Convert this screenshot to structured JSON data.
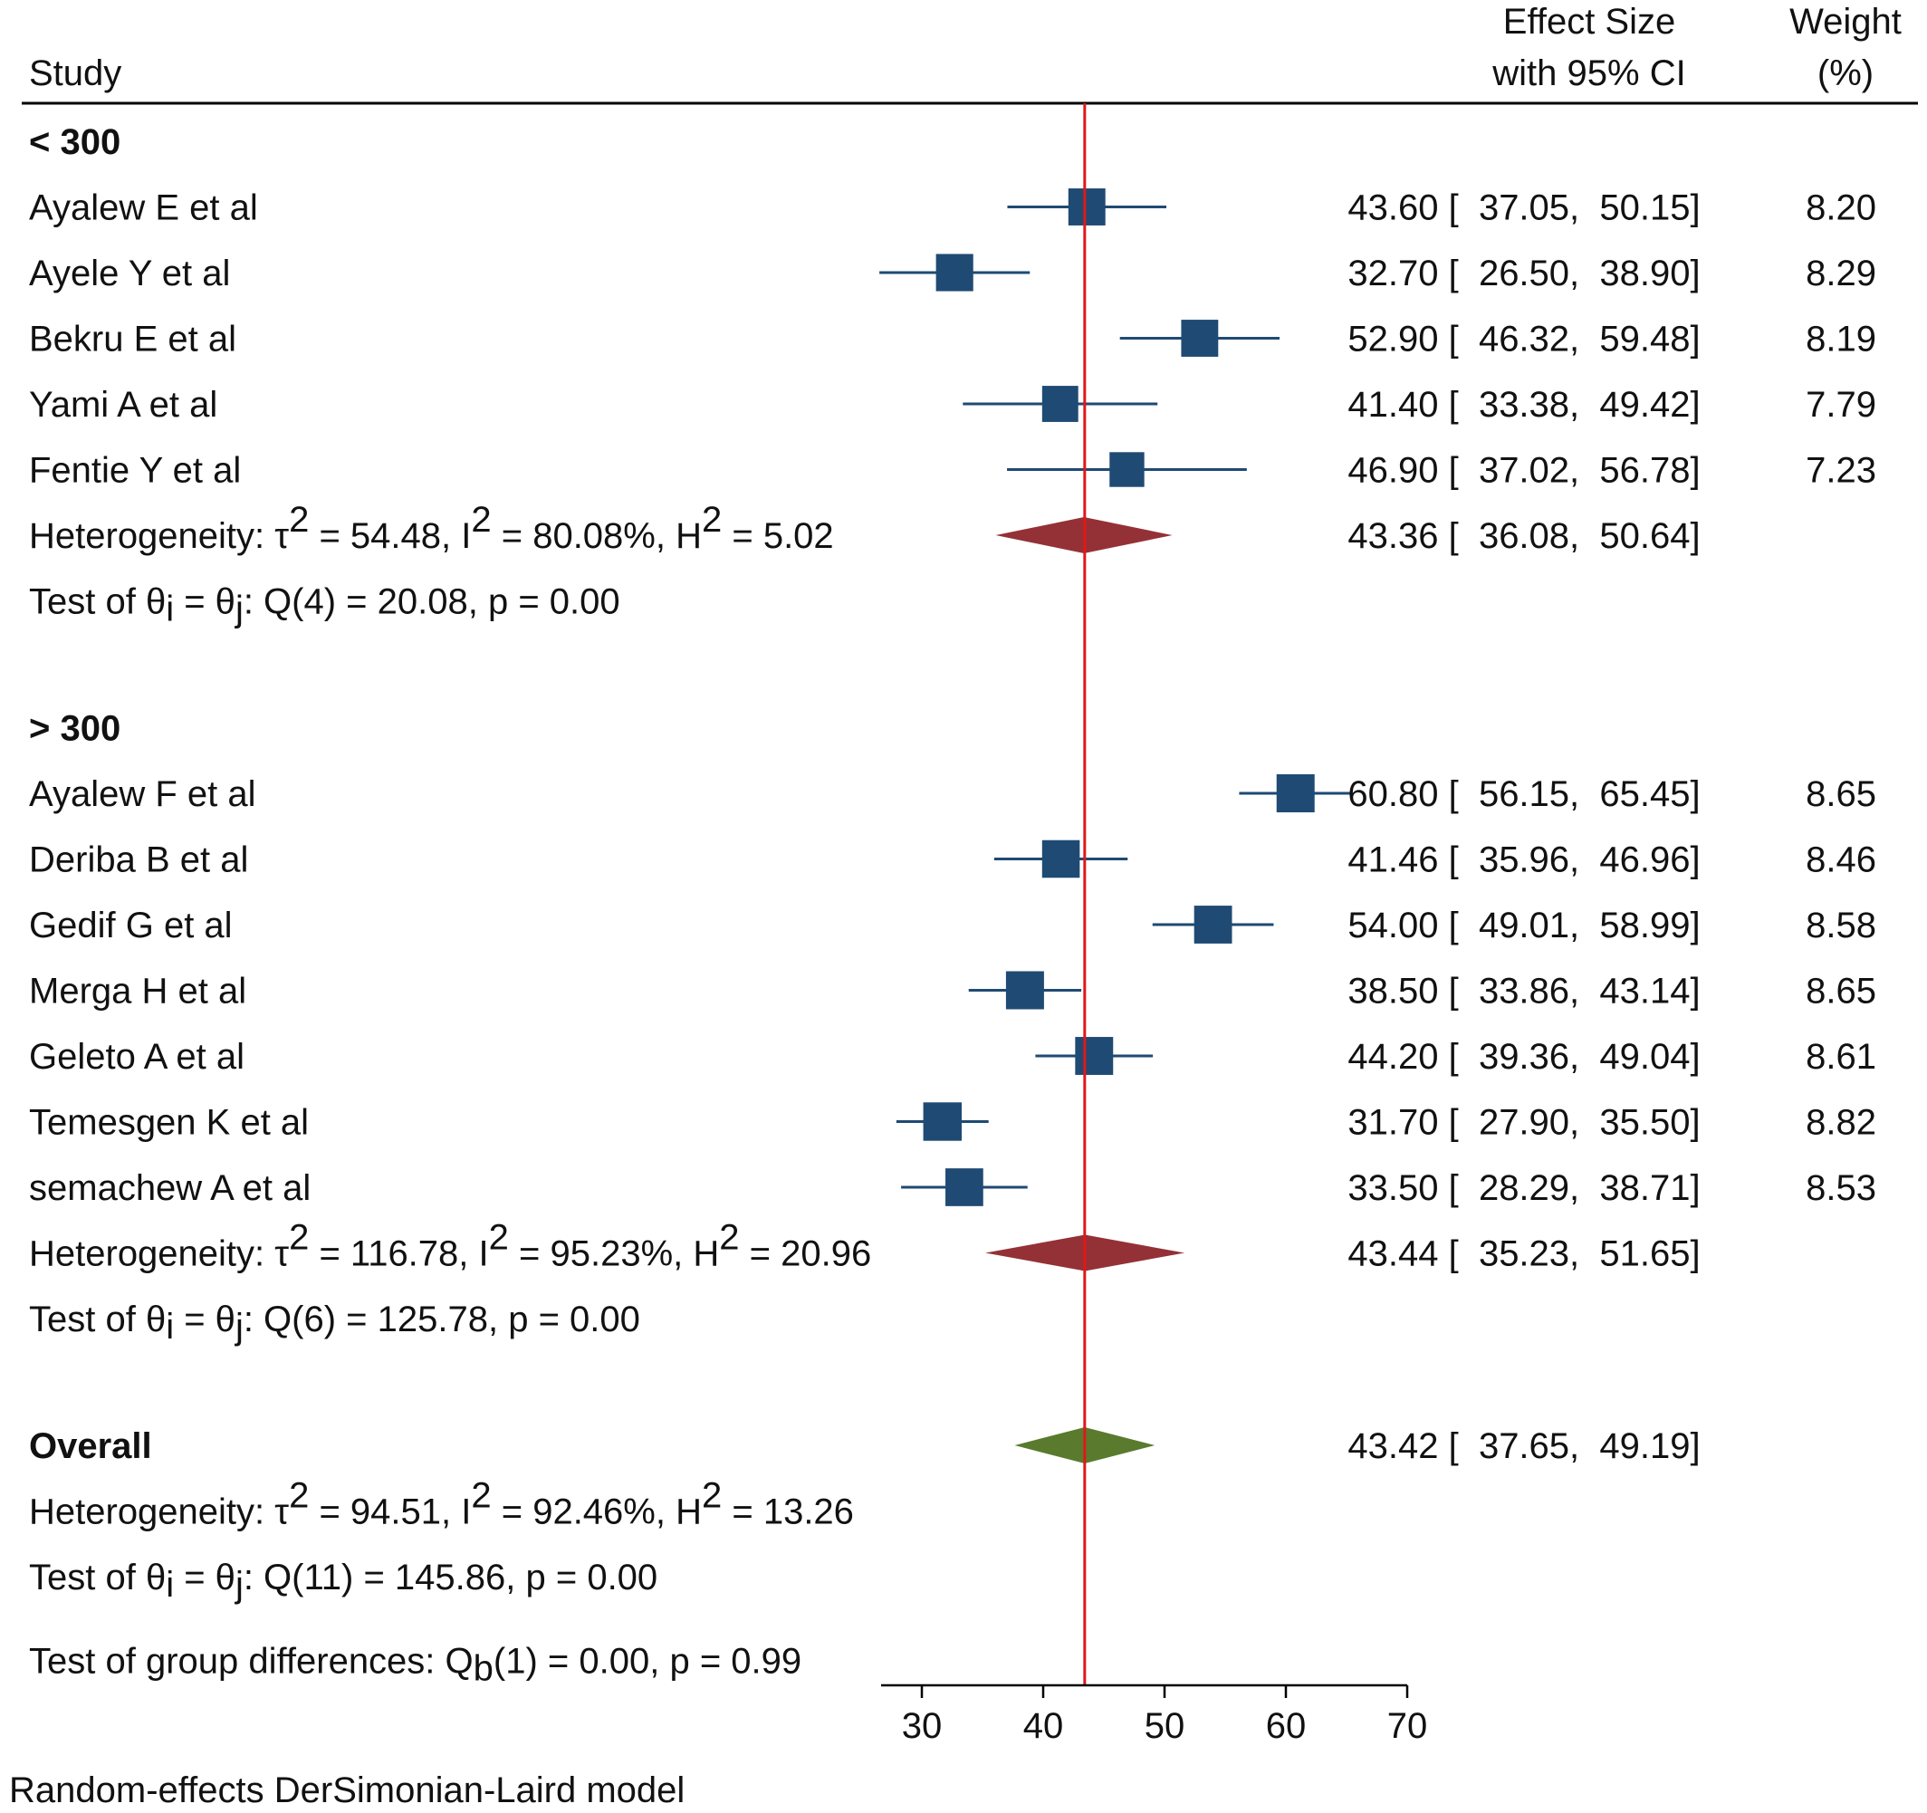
{
  "header": {
    "study": "Study",
    "effect_line1": "Effect Size",
    "effect_line2": "with 95% CI",
    "weight_line1": "Weight",
    "weight_line2": "(%)"
  },
  "colors": {
    "study_square": "#1f4a73",
    "subgroup_diamond": "#943136",
    "overall_diamond": "#5a7a2e",
    "reference_line": "#e01818",
    "ci_line": "#1f4a73"
  },
  "chart_data": {
    "type": "forest",
    "model_note": "Random-effects DerSimonian-Laird model",
    "xlim": [
      30,
      70
    ],
    "xticks": [
      30,
      40,
      50,
      60,
      70
    ],
    "reference_line": 43.42,
    "groups": [
      {
        "label": "< 300",
        "studies": [
          {
            "name": "Ayalew E et al",
            "es": 43.6,
            "lo": 37.05,
            "hi": 50.15,
            "weight": 8.2,
            "ci_text": "43.60 [  37.05,  50.15]",
            "weight_text": "8.20"
          },
          {
            "name": "Ayele Y et al",
            "es": 32.7,
            "lo": 26.5,
            "hi": 38.9,
            "weight": 8.29,
            "ci_text": "32.70 [  26.50,  38.90]",
            "weight_text": "8.29"
          },
          {
            "name": "Bekru E et al",
            "es": 52.9,
            "lo": 46.32,
            "hi": 59.48,
            "weight": 8.19,
            "ci_text": "52.90 [  46.32,  59.48]",
            "weight_text": "8.19"
          },
          {
            "name": "Yami A et al",
            "es": 41.4,
            "lo": 33.38,
            "hi": 49.42,
            "weight": 7.79,
            "ci_text": "41.40 [  33.38,  49.42]",
            "weight_text": "7.79"
          },
          {
            "name": "Fentie Y et al",
            "es": 46.9,
            "lo": 37.02,
            "hi": 56.78,
            "weight": 7.23,
            "ci_text": "46.90 [  37.02,  56.78]",
            "weight_text": "7.23"
          }
        ],
        "summary": {
          "es": 43.36,
          "lo": 36.08,
          "hi": 50.64,
          "ci_text": "43.36 [  36.08,  50.64]"
        },
        "heterogeneity": {
          "prefix": "Heterogeneity: τ",
          "tau": " = 54.48, I",
          "i2": " = 80.08%, H",
          "h2": " = 5.02"
        },
        "test": {
          "prefix": "Test of θ",
          "mid": " = θ",
          "rest": ": Q(4) = 20.08, p = 0.00"
        }
      },
      {
        "label": "> 300",
        "studies": [
          {
            "name": "Ayalew F et al",
            "es": 60.8,
            "lo": 56.15,
            "hi": 65.45,
            "weight": 8.65,
            "ci_text": "60.80 [  56.15,  65.45]",
            "weight_text": "8.65"
          },
          {
            "name": "Deriba B et al",
            "es": 41.46,
            "lo": 35.96,
            "hi": 46.96,
            "weight": 8.46,
            "ci_text": "41.46 [  35.96,  46.96]",
            "weight_text": "8.46"
          },
          {
            "name": "Gedif G et al",
            "es": 54.0,
            "lo": 49.01,
            "hi": 58.99,
            "weight": 8.58,
            "ci_text": "54.00 [  49.01,  58.99]",
            "weight_text": "8.58"
          },
          {
            "name": "Merga H et al",
            "es": 38.5,
            "lo": 33.86,
            "hi": 43.14,
            "weight": 8.65,
            "ci_text": "38.50 [  33.86,  43.14]",
            "weight_text": "8.65"
          },
          {
            "name": "Geleto A et al",
            "es": 44.2,
            "lo": 39.36,
            "hi": 49.04,
            "weight": 8.61,
            "ci_text": "44.20 [  39.36,  49.04]",
            "weight_text": "8.61"
          },
          {
            "name": "Temesgen K et al",
            "es": 31.7,
            "lo": 27.9,
            "hi": 35.5,
            "weight": 8.82,
            "ci_text": "31.70 [  27.90,  35.50]",
            "weight_text": "8.82"
          },
          {
            "name": "semachew A et al",
            "es": 33.5,
            "lo": 28.29,
            "hi": 38.71,
            "weight": 8.53,
            "ci_text": "33.50 [  28.29,  38.71]",
            "weight_text": "8.53"
          }
        ],
        "summary": {
          "es": 43.44,
          "lo": 35.23,
          "hi": 51.65,
          "ci_text": "43.44 [  35.23,  51.65]"
        },
        "heterogeneity": {
          "prefix": "Heterogeneity: τ",
          "tau": " = 116.78, I",
          "i2": " = 95.23%, H",
          "h2": " = 20.96"
        },
        "test": {
          "prefix": "Test of θ",
          "mid": " = θ",
          "rest": ": Q(6) = 125.78, p = 0.00"
        }
      }
    ],
    "overall": {
      "label": "Overall",
      "es": 43.42,
      "lo": 37.65,
      "hi": 49.19,
      "ci_text": "43.42 [  37.65,  49.19]",
      "heterogeneity": {
        "prefix": "Heterogeneity: τ",
        "tau": " = 94.51, I",
        "i2": " = 92.46%, H",
        "h2": " = 13.26"
      },
      "test": {
        "prefix": "Test of θ",
        "mid": " = θ",
        "rest": ": Q(11) = 145.86, p = 0.00"
      }
    },
    "group_test": {
      "prefix": "Test of group differences: Q",
      "sub": "b",
      "rest": "(1) = 0.00, p = 0.99"
    },
    "sub_i": "i",
    "sub_j": "j",
    "sup_2": "2"
  }
}
